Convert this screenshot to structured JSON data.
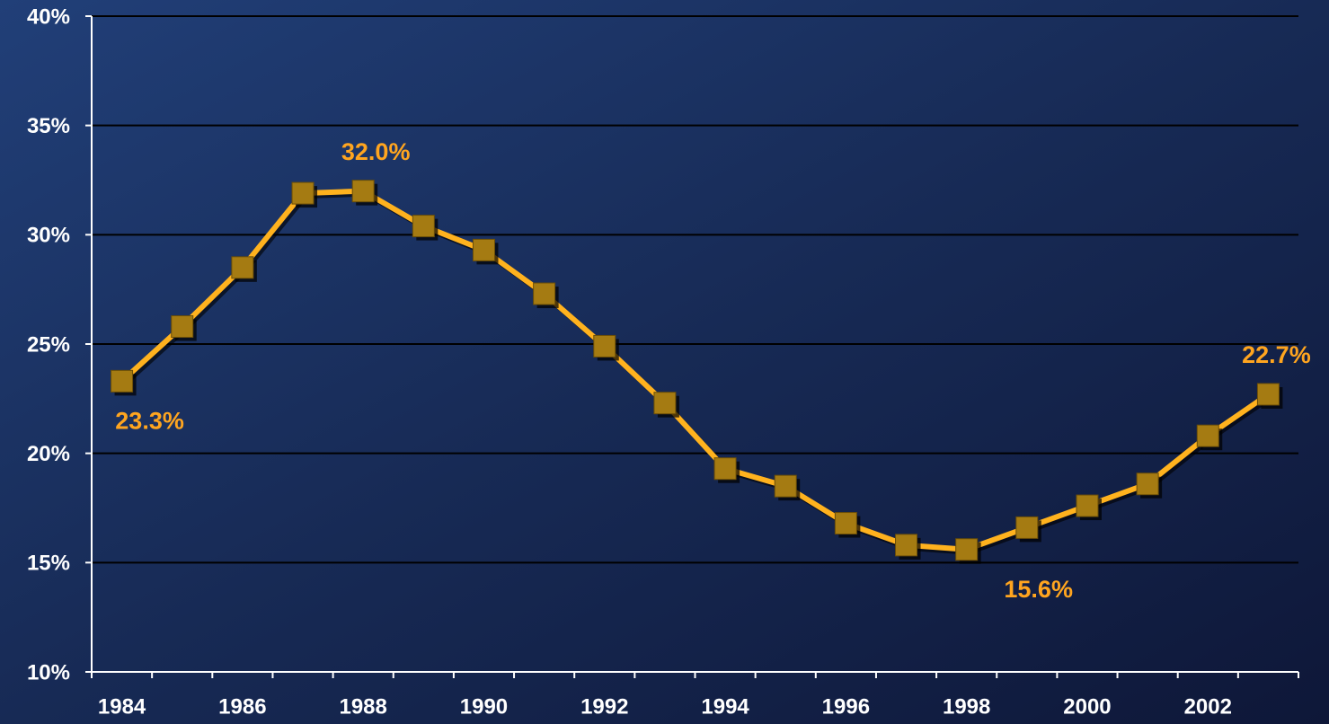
{
  "chart_data": {
    "type": "line",
    "categories": [
      "1984",
      null,
      "1986",
      null,
      "1988",
      null,
      "1990",
      null,
      "1992",
      null,
      "1994",
      null,
      "1996",
      null,
      "1998",
      null,
      "2000",
      null,
      "2002",
      null
    ],
    "series": [
      {
        "name": null,
        "color": "#ffb21e",
        "marker_color": "#a57b12",
        "values": [
          23.3,
          25.8,
          28.5,
          31.9,
          32.0,
          30.4,
          29.3,
          27.3,
          24.9,
          22.3,
          19.3,
          18.5,
          16.8,
          15.8,
          15.6,
          16.6,
          17.6,
          18.6,
          20.8,
          22.7
        ],
        "value_labels": [
          "23.3%",
          null,
          null,
          null,
          "32.0%",
          null,
          null,
          null,
          null,
          null,
          null,
          null,
          null,
          null,
          "15.6%",
          null,
          null,
          null,
          null,
          "22.7%"
        ]
      }
    ],
    "ylim": [
      10,
      40
    ],
    "yticks": [
      {
        "value": 10,
        "label": "10%"
      },
      {
        "value": 15,
        "label": "15%"
      },
      {
        "value": 20,
        "label": "20%"
      },
      {
        "value": 25,
        "label": "25%"
      },
      {
        "value": 30,
        "label": "30%"
      },
      {
        "value": 35,
        "label": "35%"
      },
      {
        "value": 40,
        "label": "40%"
      }
    ],
    "grid": true
  }
}
